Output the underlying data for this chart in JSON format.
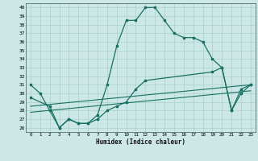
{
  "title": "",
  "xlabel": "Humidex (Indice chaleur)",
  "xlim": [
    -0.5,
    23.5
  ],
  "ylim": [
    25.5,
    40.5
  ],
  "xticks": [
    0,
    1,
    2,
    3,
    4,
    5,
    6,
    7,
    8,
    9,
    10,
    11,
    12,
    13,
    14,
    15,
    16,
    17,
    18,
    19,
    20,
    21,
    22,
    23
  ],
  "yticks": [
    26,
    27,
    28,
    29,
    30,
    31,
    32,
    33,
    34,
    35,
    36,
    37,
    38,
    39,
    40
  ],
  "background_color": "#cce8e6",
  "grid_color": "#aad0ce",
  "line_color": "#1a7060",
  "line1_x": [
    0,
    1,
    2,
    3,
    4,
    5,
    6,
    7,
    8,
    9,
    10,
    11,
    12,
    13,
    14,
    15,
    16,
    17,
    18,
    19,
    20,
    21,
    22,
    23
  ],
  "line1_y": [
    31,
    30,
    28,
    26,
    27,
    26.5,
    26.5,
    27.5,
    31,
    35.5,
    38.5,
    38.5,
    40,
    40,
    38.5,
    37,
    36.5,
    36.5,
    36,
    34,
    33,
    28,
    30.5,
    31
  ],
  "line2_x": [
    0,
    2,
    3,
    4,
    5,
    6,
    7,
    8,
    9,
    10,
    11,
    12,
    19,
    20,
    21,
    22,
    23
  ],
  "line2_y": [
    29.5,
    28.5,
    26,
    27,
    26.5,
    26.5,
    27,
    28,
    28.5,
    29,
    30.5,
    31.5,
    32.5,
    33,
    28,
    30,
    31
  ],
  "line3_x": [
    0,
    23
  ],
  "line3_y": [
    28.5,
    31.0
  ],
  "line4_x": [
    0,
    23
  ],
  "line4_y": [
    27.8,
    30.3
  ]
}
